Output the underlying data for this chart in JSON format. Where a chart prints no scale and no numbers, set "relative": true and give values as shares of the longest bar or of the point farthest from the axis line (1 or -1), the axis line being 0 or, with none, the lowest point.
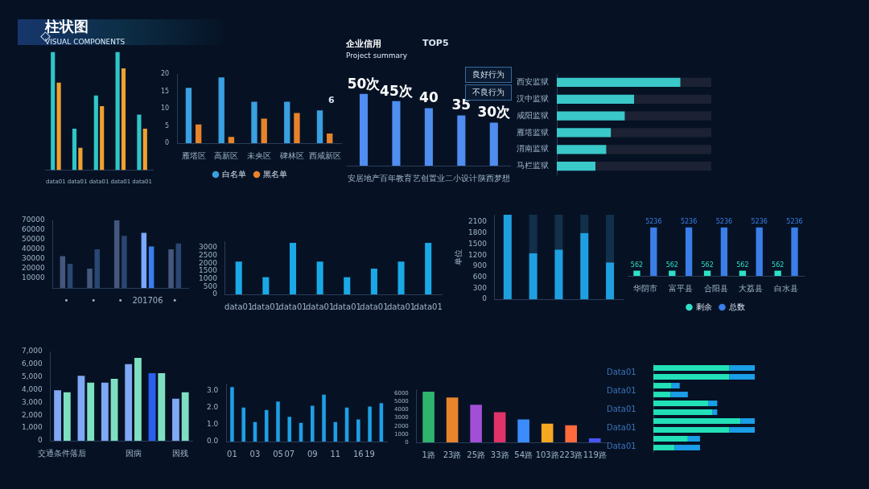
{
  "chart_data": [
    {
      "type": "bar",
      "title": "柱状图",
      "subtitle": "VISUAL COMPONENTS",
      "categories": [
        "data01",
        "data01",
        "data01",
        "data01",
        "data01"
      ],
      "relative": true,
      "series": [
        {
          "color": "#f0a030",
          "values": [
            0.74,
            0.19,
            0.54,
            0.86,
            0.35
          ]
        },
        {
          "color": "#2fc6c8",
          "values": [
            1,
            0.35,
            0.63,
            1,
            0.47
          ]
        }
      ]
    },
    {
      "type": "bar",
      "categories": [
        "雁塔区",
        "高新区",
        "未央区",
        "碑林区",
        "西咸新区"
      ],
      "ylim": [
        0,
        20
      ],
      "yticks": [
        0,
        5,
        10,
        15,
        20
      ],
      "legend": "bottom",
      "series": [
        {
          "name": "黑名单",
          "color": "#e8832a",
          "values": [
            5.4,
            1.8,
            7.1,
            8.7,
            2.8
          ]
        },
        {
          "name": "白名单",
          "color": "#3aa0e0",
          "values": [
            16,
            19,
            12,
            12,
            9.5
          ]
        }
      ],
      "annotations": [
        "6"
      ]
    },
    {
      "type": "bar",
      "title": "企业信用",
      "subtitle": "Project summary",
      "categories": [
        "安居地产",
        "百年教育",
        "艺创置业",
        "二小设计",
        "陕西梦想"
      ],
      "values": [
        50,
        45,
        40,
        35,
        30
      ],
      "value_labels": [
        "50次",
        "45次",
        "40",
        "35",
        "30次"
      ],
      "color": "#4f8ef0",
      "tick_labels": "x",
      "annotations": [
        "TOP5",
        "良好行为",
        "不良行为"
      ]
    },
    {
      "type": "bar",
      "orientation": "horizontal",
      "stacked": true,
      "relative": true,
      "categories": [
        "西安监狱",
        "汉中监狱",
        "咸阳监狱",
        "雁塔监狱",
        "渭南监狱",
        "马栏监狱"
      ],
      "series": [
        {
          "color": "#3ac8c8",
          "values": [
            0.8,
            0.5,
            0.44,
            0.35,
            0.32,
            0.25
          ]
        },
        {
          "color": "#1c2233",
          "values": [
            0.2,
            0.5,
            0.56,
            0.65,
            0.68,
            0.75
          ]
        }
      ]
    },
    {
      "type": "bar",
      "categories": [
        "•",
        "•",
        "•",
        "201706",
        "•"
      ],
      "ylim": [
        0,
        70000
      ],
      "yticks": [
        10000,
        20000,
        30000,
        40000,
        50000,
        60000,
        70000
      ],
      "series": [
        {
          "colors": [
            "#2a4672",
            "#2a4672",
            "#2a4672",
            "#3a7ef0",
            "#2a4672"
          ],
          "values": [
            25000,
            40000,
            54000,
            43000,
            46000
          ]
        },
        {
          "colors": [
            "#44587e",
            "#44587e",
            "#44587e",
            "#7aa8ff",
            "#44587e"
          ],
          "values": [
            33000,
            20000,
            70000,
            57000,
            40000
          ]
        }
      ]
    },
    {
      "type": "bar",
      "categories": [
        "data01",
        "data01",
        "data01",
        "data01",
        "data01",
        "data01",
        "data01",
        "data01"
      ],
      "values": [
        2100,
        1100,
        3300,
        2100,
        1100,
        1650,
        2100,
        3300
      ],
      "color": "#1aa8e6",
      "ylim": [
        0,
        3400
      ],
      "yticks": [
        0,
        500,
        1000,
        1500,
        2000,
        2500,
        3000
      ]
    },
    {
      "type": "bar",
      "ylabel": "单位",
      "stacked": true,
      "categories": [
        null,
        null,
        null,
        null,
        null
      ],
      "ylim": [
        0,
        2300
      ],
      "yticks": [
        0,
        300,
        600,
        900,
        1200,
        1500,
        1800,
        2100
      ],
      "tick_labels": "y",
      "series": [
        {
          "color": "#1ea0e0",
          "values": [
            2300,
            1250,
            1350,
            1800,
            1000
          ]
        },
        {
          "color": "#12304a",
          "values": [
            0,
            1050,
            950,
            500,
            1300
          ]
        }
      ]
    },
    {
      "type": "bar",
      "categories": [
        "华阴市",
        "富平县",
        "合阳县",
        "大荔县",
        "白水县"
      ],
      "legend": "bottom",
      "tick_labels": "x",
      "data_labels": true,
      "series": [
        {
          "name": "总数",
          "color": "#3a7ee8",
          "values": [
            5236,
            5236,
            5236,
            5236,
            5236
          ]
        },
        {
          "name": "剩余",
          "color": "#2ee0c8",
          "values": [
            562,
            562,
            562,
            562,
            562
          ]
        }
      ]
    },
    {
      "type": "bar",
      "categories": [
        "交通条件落后",
        null,
        null,
        "因病",
        null,
        "因残"
      ],
      "ylim": [
        0,
        7000
      ],
      "yticks": [
        0,
        {
          "value": 1000,
          "label": "1,000"
        },
        {
          "value": 2000,
          "label": "2,000"
        },
        {
          "value": 3000,
          "label": "3,000"
        },
        {
          "value": 4000,
          "label": "4,000"
        },
        {
          "value": 5000,
          "label": "5,000"
        },
        {
          "value": 6000,
          "label": "6,000"
        },
        {
          "value": 7000,
          "label": "7,000"
        }
      ],
      "series": [
        {
          "color": "#7ee0c0",
          "values": [
            3800,
            4550,
            4850,
            6500,
            5300,
            3800
          ]
        },
        {
          "colors": [
            "#7fa8f5",
            "#7fa8f5",
            "#7fa8f5",
            "#7fa8f5",
            "#2a60f0",
            "#7fa8f5"
          ],
          "values": [
            3950,
            5100,
            4550,
            6000,
            5300,
            3300
          ]
        }
      ]
    },
    {
      "type": "bar",
      "categories": [
        "01",
        null,
        "03",
        null,
        "05",
        "07",
        null,
        "09",
        null,
        "11",
        null,
        "16",
        "19",
        null
      ],
      "values": [
        3.2,
        2.0,
        1.15,
        1.85,
        2.35,
        1.45,
        1.1,
        2.1,
        2.75,
        1.15,
        2.0,
        1.3,
        2.05,
        2.25
      ],
      "color": "#1e9fe6",
      "ylim": [
        0,
        3.4
      ],
      "yticks": [
        {
          "value": 0,
          "label": "0.0"
        },
        {
          "value": 1,
          "label": "1.0"
        },
        {
          "value": 2,
          "label": "2.0"
        },
        {
          "value": 3,
          "label": "3.0"
        }
      ]
    },
    {
      "type": "bar",
      "categories": [
        "1路",
        "23路",
        "25路",
        "33路",
        "54路",
        "103路",
        "223路",
        "119路"
      ],
      "values": [
        6200,
        5500,
        4600,
        3700,
        2800,
        2300,
        2100,
        500
      ],
      "colors": [
        "#2fb46e",
        "#e8852c",
        "#a24fd6",
        "#e0336a",
        "#3a8cff",
        "#f5a623",
        "#ff6b3d",
        "#4a55ff"
      ],
      "ylim": [
        0,
        6500
      ],
      "yticks": [
        0,
        1000,
        2000,
        3000,
        4000,
        5000,
        6000
      ]
    },
    {
      "type": "bar",
      "orientation": "horizontal",
      "stacked": true,
      "relative": true,
      "categories": [
        null,
        null,
        null,
        null,
        null,
        null,
        null,
        null,
        null,
        null
      ],
      "annotations": [
        "Data01",
        "Data01",
        "Data01",
        "Data01",
        "Data01"
      ],
      "series": [
        {
          "color": "#22e0b8",
          "values": [
            0.75,
            0.75,
            0.18,
            0.17,
            0.54,
            0.58,
            0.86,
            0.75,
            0.34,
            0.21
          ]
        },
        {
          "color": "#1a9ee8",
          "values": [
            0.25,
            0.25,
            0.08,
            0.17,
            0.09,
            0.05,
            0.14,
            0.25,
            0.12,
            0.25
          ]
        }
      ]
    }
  ]
}
